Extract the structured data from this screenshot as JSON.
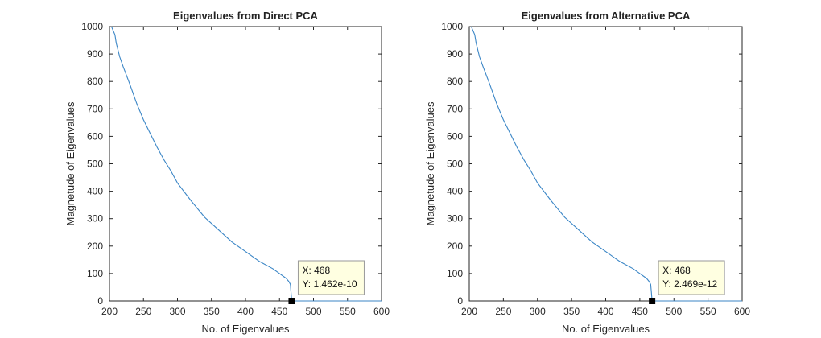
{
  "colors": {
    "line": "#3b86c6",
    "axes": "#262626",
    "datatip_bg": "#ffffe1",
    "datatip_border": "#9a9a9a",
    "marker": "#000000"
  },
  "chart_data": [
    {
      "type": "line",
      "title": "Eigenvalues from Direct PCA",
      "xlabel": "No. of Eigenvalues",
      "ylabel": "Magnetude of Eigenvalues",
      "xlim": [
        200,
        600
      ],
      "ylim": [
        0,
        1000
      ],
      "xticks": [
        "200",
        "250",
        "300",
        "350",
        "400",
        "450",
        "500",
        "550",
        "600"
      ],
      "yticks": [
        "0",
        "100",
        "200",
        "300",
        "400",
        "500",
        "600",
        "700",
        "800",
        "900",
        "1000"
      ],
      "grid": false,
      "series": [
        {
          "x": [
            203,
            208,
            210,
            215,
            220,
            230,
            240,
            250,
            260,
            270,
            280,
            290,
            300,
            320,
            340,
            360,
            380,
            400,
            420,
            440,
            450,
            460,
            464,
            466,
            467,
            468,
            470,
            500,
            550,
            600
          ],
          "y": [
            1000,
            970,
            940,
            890,
            855,
            790,
            720,
            660,
            610,
            560,
            515,
            475,
            430,
            365,
            305,
            260,
            215,
            180,
            145,
            118,
            100,
            82,
            70,
            60,
            30,
            1.462e-10,
            0,
            0,
            0,
            0
          ]
        }
      ],
      "datatip": {
        "x_text": "X: 468",
        "y_text": "Y: 1.462e-10",
        "x": 468,
        "y": 0
      }
    },
    {
      "type": "line",
      "title": "Eigenvalues from Alternative PCA",
      "xlabel": "No. of Eigenvalues",
      "ylabel": "Magnetude of Eigenvalues",
      "xlim": [
        200,
        600
      ],
      "ylim": [
        0,
        1000
      ],
      "xticks": [
        "200",
        "250",
        "300",
        "350",
        "400",
        "450",
        "500",
        "550",
        "600"
      ],
      "yticks": [
        "0",
        "100",
        "200",
        "300",
        "400",
        "500",
        "600",
        "700",
        "800",
        "900",
        "1000"
      ],
      "grid": false,
      "series": [
        {
          "x": [
            203,
            208,
            210,
            215,
            220,
            230,
            240,
            250,
            260,
            270,
            280,
            290,
            300,
            320,
            340,
            360,
            380,
            400,
            420,
            440,
            450,
            460,
            464,
            466,
            467,
            468,
            470,
            500,
            550,
            600
          ],
          "y": [
            1000,
            970,
            940,
            890,
            855,
            790,
            720,
            660,
            610,
            560,
            515,
            475,
            430,
            365,
            305,
            260,
            215,
            180,
            145,
            118,
            100,
            82,
            70,
            60,
            30,
            2.469e-12,
            0,
            0,
            0,
            0
          ]
        }
      ],
      "datatip": {
        "x_text": "X: 468",
        "y_text": "Y: 2.469e-12",
        "x": 468,
        "y": 0
      }
    }
  ]
}
